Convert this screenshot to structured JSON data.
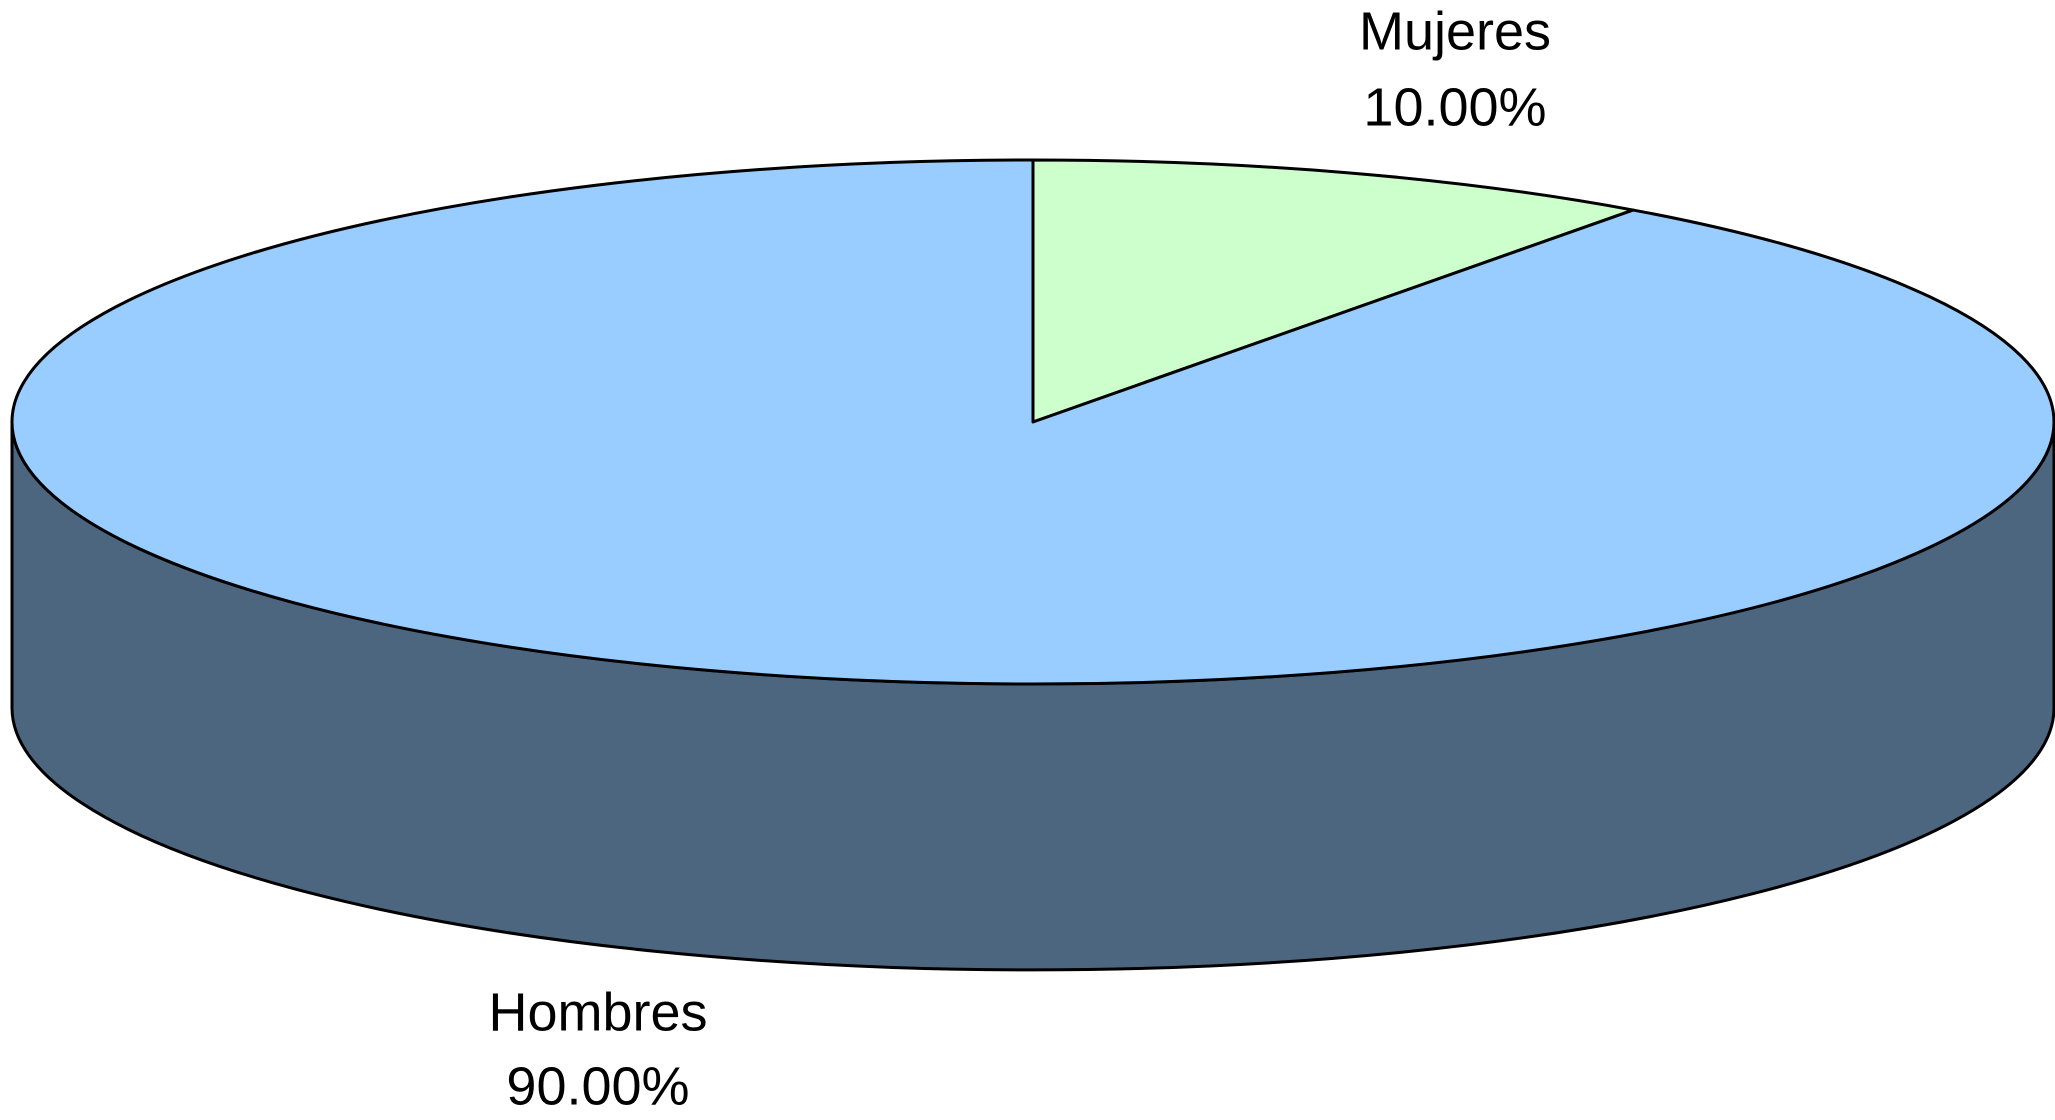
{
  "chart_data": {
    "type": "pie",
    "categories": [
      "Mujeres",
      "Hombres"
    ],
    "values": [
      10,
      90
    ],
    "value_labels": [
      "10.00%",
      "90.00%"
    ],
    "colors": [
      "#ccffcc",
      "#99ccff"
    ]
  }
}
